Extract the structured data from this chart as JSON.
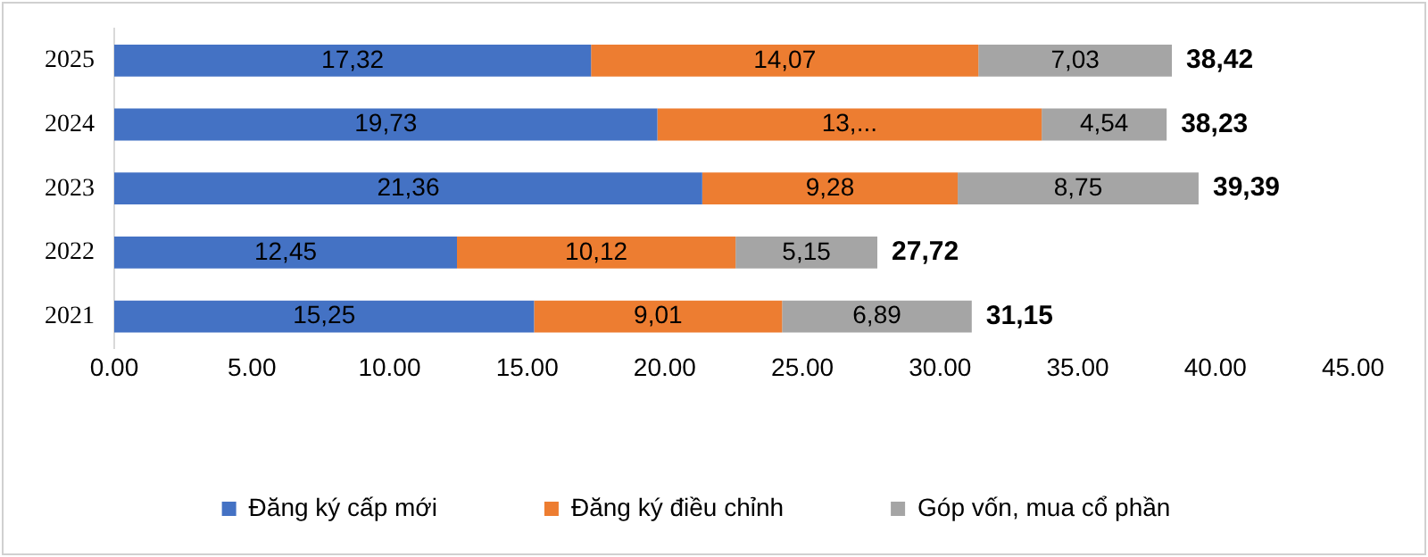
{
  "chart_data": {
    "type": "bar",
    "orientation": "horizontal",
    "stacked": true,
    "categories": [
      "2025",
      "2024",
      "2023",
      "2022",
      "2021"
    ],
    "series": [
      {
        "name": "Đăng ký cấp mới",
        "color": "#4472c4",
        "values": [
          17.32,
          19.73,
          21.36,
          12.45,
          15.25
        ],
        "value_labels": [
          "17,32",
          "19,73",
          "21,36",
          "12,45",
          "15,25"
        ]
      },
      {
        "name": "Đăng ký điều chỉnh",
        "color": "#ed7d31",
        "values": [
          14.07,
          13.96,
          9.28,
          10.12,
          9.01
        ],
        "value_labels": [
          "14,07",
          "13,...",
          "9,28",
          "10,12",
          "9,01"
        ]
      },
      {
        "name": "Góp vốn, mua cổ phần",
        "color": "#a5a5a5",
        "values": [
          7.03,
          4.54,
          8.75,
          5.15,
          6.89
        ],
        "value_labels": [
          "7,03",
          "4,54",
          "8,75",
          "5,15",
          "6,89"
        ]
      }
    ],
    "totals": [
      "38,42",
      "38,23",
      "39,39",
      "27,72",
      "31,15"
    ],
    "xlim": [
      0,
      45
    ],
    "xticks": [
      {
        "value": 0,
        "label": "0.00"
      },
      {
        "value": 5,
        "label": "5.00"
      },
      {
        "value": 10,
        "label": "10.00"
      },
      {
        "value": 15,
        "label": "15.00"
      },
      {
        "value": 20,
        "label": "20.00"
      },
      {
        "value": 25,
        "label": "25.00"
      },
      {
        "value": 30,
        "label": "30.00"
      },
      {
        "value": 35,
        "label": "35.00"
      },
      {
        "value": 40,
        "label": "40.00"
      },
      {
        "value": 45,
        "label": "45.00"
      }
    ],
    "grid": false,
    "legend": "bottom"
  }
}
